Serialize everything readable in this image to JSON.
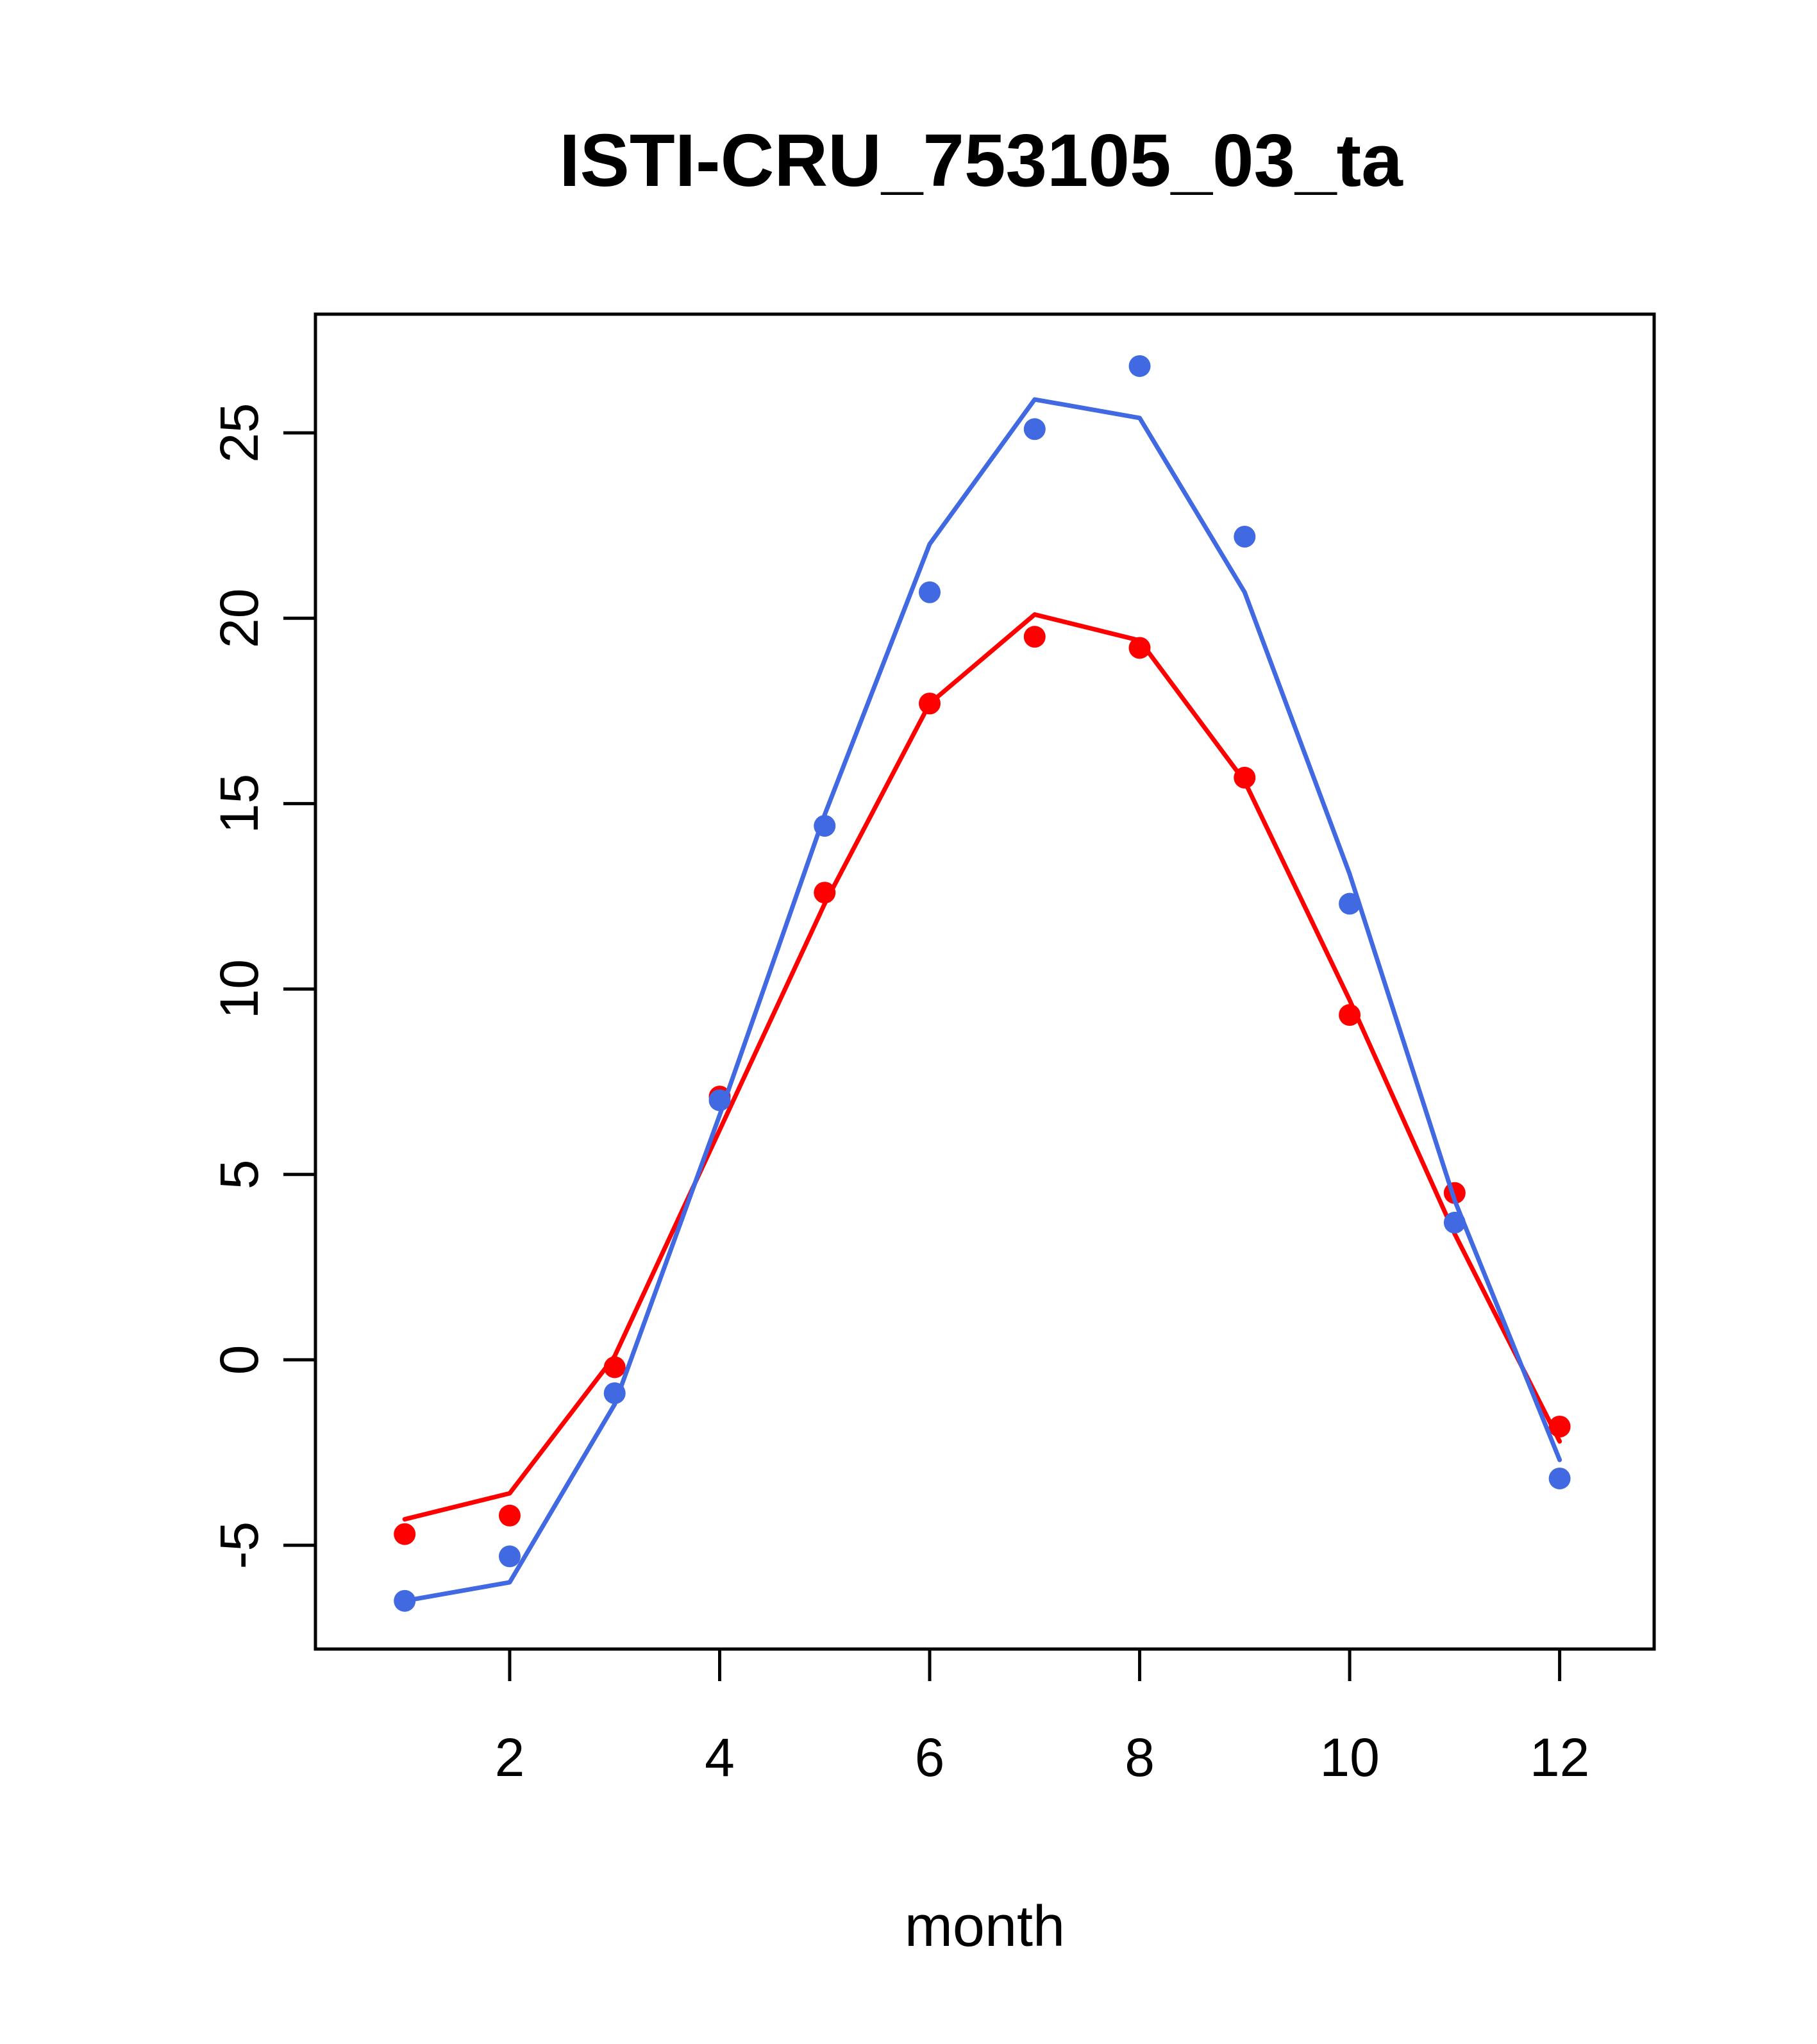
{
  "chart_data": {
    "type": "line",
    "title": "ISTI-CRU_753105_03_ta",
    "xlabel": "month",
    "ylabel": "",
    "x": [
      1,
      2,
      3,
      4,
      5,
      6,
      7,
      8,
      9,
      10,
      11,
      12
    ],
    "xticks": [
      2,
      4,
      6,
      8,
      10,
      12
    ],
    "yticks": [
      -5,
      0,
      5,
      10,
      15,
      20,
      25
    ],
    "xlim": [
      0.15,
      12.9
    ],
    "ylim": [
      -7.8,
      28.2
    ],
    "grid": false,
    "legend": "none",
    "series": [
      {
        "color": "#ff0000",
        "line": [
          -4.3,
          -3.6,
          0.1,
          6.2,
          12.3,
          17.7,
          20.1,
          19.4,
          15.6,
          9.7,
          3.4,
          -2.2
        ],
        "points": [
          -4.7,
          -4.2,
          -0.2,
          7.1,
          12.6,
          17.7,
          19.5,
          19.2,
          15.7,
          9.3,
          4.5,
          -1.8
        ]
      },
      {
        "color": "#4169e1",
        "line": [
          -6.5,
          -6.0,
          -1.2,
          6.6,
          14.7,
          22.0,
          25.9,
          25.4,
          20.7,
          13.1,
          4.3,
          -2.7
        ],
        "points": [
          -6.5,
          -5.3,
          -0.9,
          7.0,
          14.4,
          20.7,
          25.1,
          26.8,
          22.2,
          12.3,
          3.7,
          -3.2
        ]
      }
    ]
  }
}
